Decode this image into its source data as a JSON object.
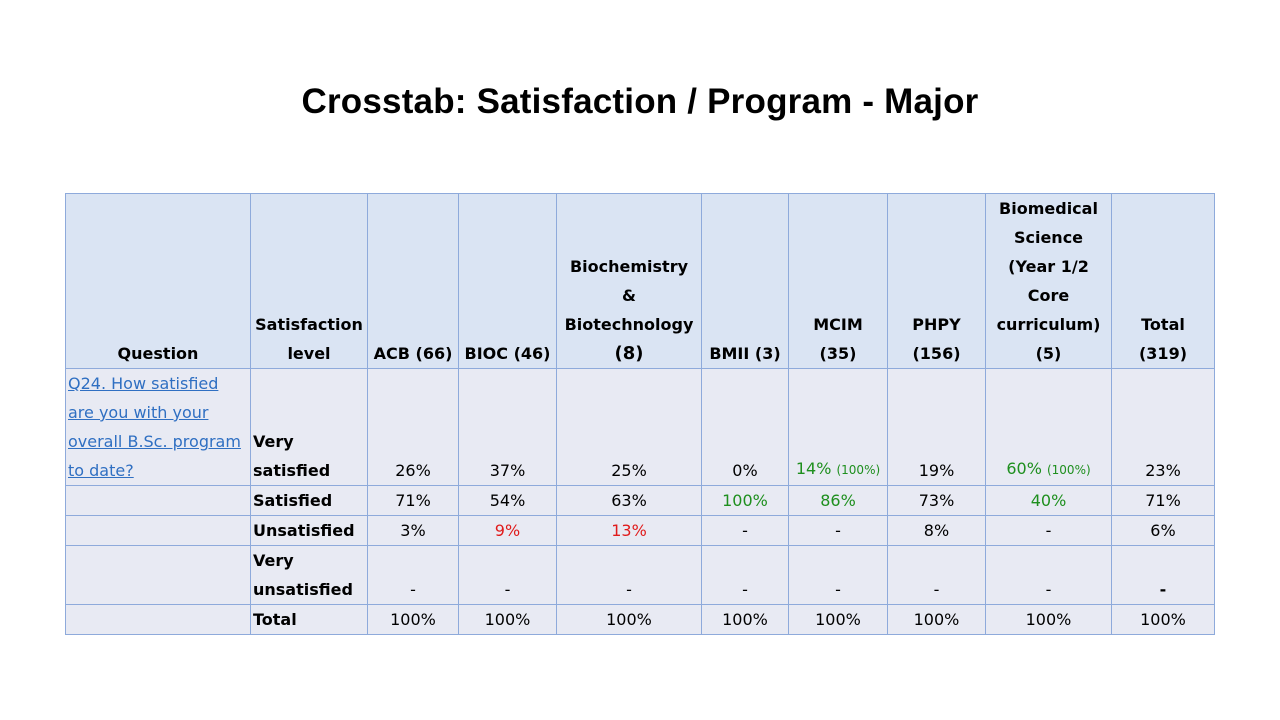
{
  "title": "Crosstab: Satisfaction / Program - Major",
  "headers": {
    "question": "Question",
    "level_line1": "Satisfaction",
    "level_line2": "level",
    "acb": "ACB (66)",
    "bioc": "BIOC (46)",
    "biochem_line1": "Biochemistry",
    "biochem_line2": "&",
    "biochem_line3": "Biotechnology",
    "biochem_line4": "(8)",
    "bmii": "BMII (3)",
    "mcim_line1": "MCIM",
    "mcim_line2": "(35)",
    "phpy_line1": "PHPY",
    "phpy_line2": "(156)",
    "biomed_line1": "Biomedical",
    "biomed_line2": "Science",
    "biomed_line3": "(Year 1/2",
    "biomed_line4": "Core",
    "biomed_line5": "curriculum)",
    "biomed_line6": "(5)",
    "total_line1": "Total",
    "total_line2": "(319)"
  },
  "question_text": "Q24. How satisfied are you with your overall B.Sc. program to date?",
  "rows": {
    "very_satisfied": {
      "level_line1": "Very",
      "level_line2": "satisfied",
      "acb": "26%",
      "bioc": "37%",
      "biochem": "25%",
      "bmii": "0%",
      "mcim": "14%",
      "mcim_note": "(100%)",
      "phpy": "19%",
      "biomed": "60%",
      "biomed_note": "(100%)",
      "total": "23%"
    },
    "satisfied": {
      "level": "Satisfied",
      "acb": "71%",
      "bioc": "54%",
      "biochem": "63%",
      "bmii": "100%",
      "mcim": "86%",
      "phpy": "73%",
      "biomed": "40%",
      "total": "71%"
    },
    "unsatisfied": {
      "level": "Unsatisfied",
      "acb": "3%",
      "bioc": "9%",
      "biochem": "13%",
      "bmii": "-",
      "mcim": "-",
      "phpy": "8%",
      "biomed": "-",
      "total": "6%"
    },
    "very_unsatisfied": {
      "level_line1": "Very",
      "level_line2": "unsatisfied",
      "acb": "-",
      "bioc": "-",
      "biochem": "-",
      "bmii": "-",
      "mcim": "-",
      "phpy": "-",
      "biomed": "-",
      "total": "-"
    },
    "total": {
      "level": "Total",
      "acb": "100%",
      "bioc": "100%",
      "biochem": "100%",
      "bmii": "100%",
      "mcim": "100%",
      "phpy": "100%",
      "biomed": "100%",
      "total": "100%"
    }
  },
  "colors": {
    "header_bg": "#dae4f3",
    "cell_bg": "#e8eaf3",
    "border": "#8eaadb",
    "link": "#2f6fc2",
    "positive": "#1e8f1e",
    "negative": "#e01b1b"
  }
}
